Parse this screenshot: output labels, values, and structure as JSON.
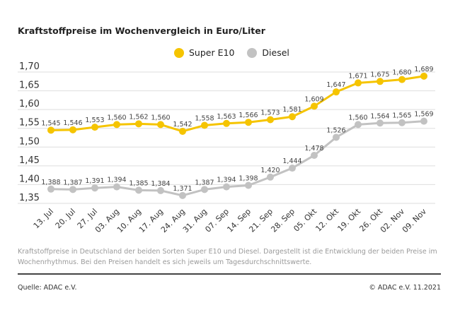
{
  "chart_data": {
    "type": "line",
    "title": "Kraftstoffpreise im Wochenvergleich in Euro/Liter",
    "categories": [
      "13. Jul",
      "20. Jul",
      "27. Jul",
      "03. Aug",
      "10. Aug",
      "17. Aug",
      "24. Aug",
      "31. Aug",
      "07. Sep",
      "14. Sep",
      "21. Sep",
      "28. Sep",
      "05. Okt",
      "12. Okt",
      "19. Okt",
      "26. Okt",
      "02. Nov",
      "09. Nov"
    ],
    "series": [
      {
        "name": "Super E10",
        "color": "#f5c400",
        "values": [
          1.545,
          1.546,
          1.553,
          1.56,
          1.562,
          1.56,
          1.542,
          1.558,
          1.563,
          1.566,
          1.573,
          1.581,
          1.609,
          1.647,
          1.671,
          1.675,
          1.68,
          1.689
        ]
      },
      {
        "name": "Diesel",
        "color": "#c2c2c2",
        "values": [
          1.388,
          1.387,
          1.391,
          1.394,
          1.385,
          1.384,
          1.371,
          1.387,
          1.394,
          1.398,
          1.42,
          1.444,
          1.478,
          1.526,
          1.56,
          1.564,
          1.565,
          1.569
        ]
      }
    ],
    "yticks": [
      "1,35",
      "1,40",
      "1,45",
      "1,50",
      "1,55",
      "1,60",
      "1,65",
      "1,70"
    ],
    "ylim": [
      1.35,
      1.7
    ],
    "grid": true,
    "legend_position": "top-center"
  },
  "footnote": "Kraftstoffpreise in Deutschland der beiden Sorten Super E10 und Diesel. Dargestellt ist die Entwicklung der beiden Preise im Wochenrhythmus. Bei den Preisen handelt es sich jeweils um Tagesdurchschnittswerte.",
  "source": "Quelle: ADAC e.V.",
  "copyright": "© ADAC e.V. 11.2021"
}
